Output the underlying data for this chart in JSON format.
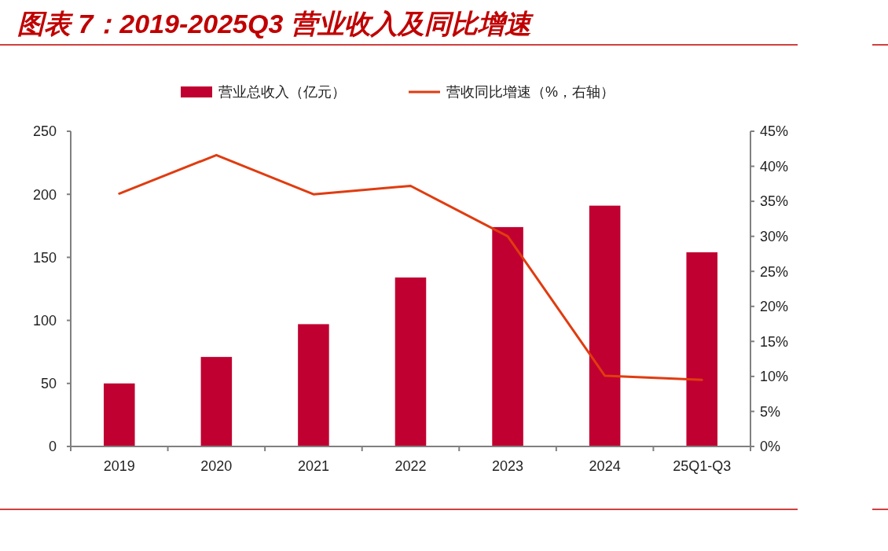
{
  "chart_data": {
    "type": "bar",
    "title": "图表 7：2019-2025Q3 营业收入及同比增速",
    "categories": [
      "2019",
      "2020",
      "2021",
      "2022",
      "2023",
      "2024",
      "25Q1-Q3"
    ],
    "series": [
      {
        "name": "营业总收入（亿元）",
        "color": "#c00030",
        "values": [
          50,
          71,
          97,
          134,
          174,
          191,
          154
        ]
      },
      {
        "name": "营收同比增速（%，右轴）",
        "type": "line",
        "axis": "y2",
        "color": "#e03c10",
        "values": [
          36.1,
          41.6,
          36.0,
          37.2,
          30.0,
          10.1,
          9.5
        ]
      }
    ],
    "ylim": [
      0,
      250
    ],
    "yticks": [
      0,
      50,
      100,
      150,
      200,
      250
    ],
    "y2lim": [
      0,
      45
    ],
    "y2ticks": [
      {
        "value": 0,
        "label": "0%"
      },
      {
        "value": 5,
        "label": "5%"
      },
      {
        "value": 10,
        "label": "10%"
      },
      {
        "value": 15,
        "label": "15%"
      },
      {
        "value": 20,
        "label": "20%"
      },
      {
        "value": 25,
        "label": "25%"
      },
      {
        "value": 30,
        "label": "30%"
      },
      {
        "value": 35,
        "label": "35%"
      },
      {
        "value": 40,
        "label": "40%"
      },
      {
        "value": 45,
        "label": "45%"
      }
    ],
    "legend": "top",
    "grid": false
  }
}
